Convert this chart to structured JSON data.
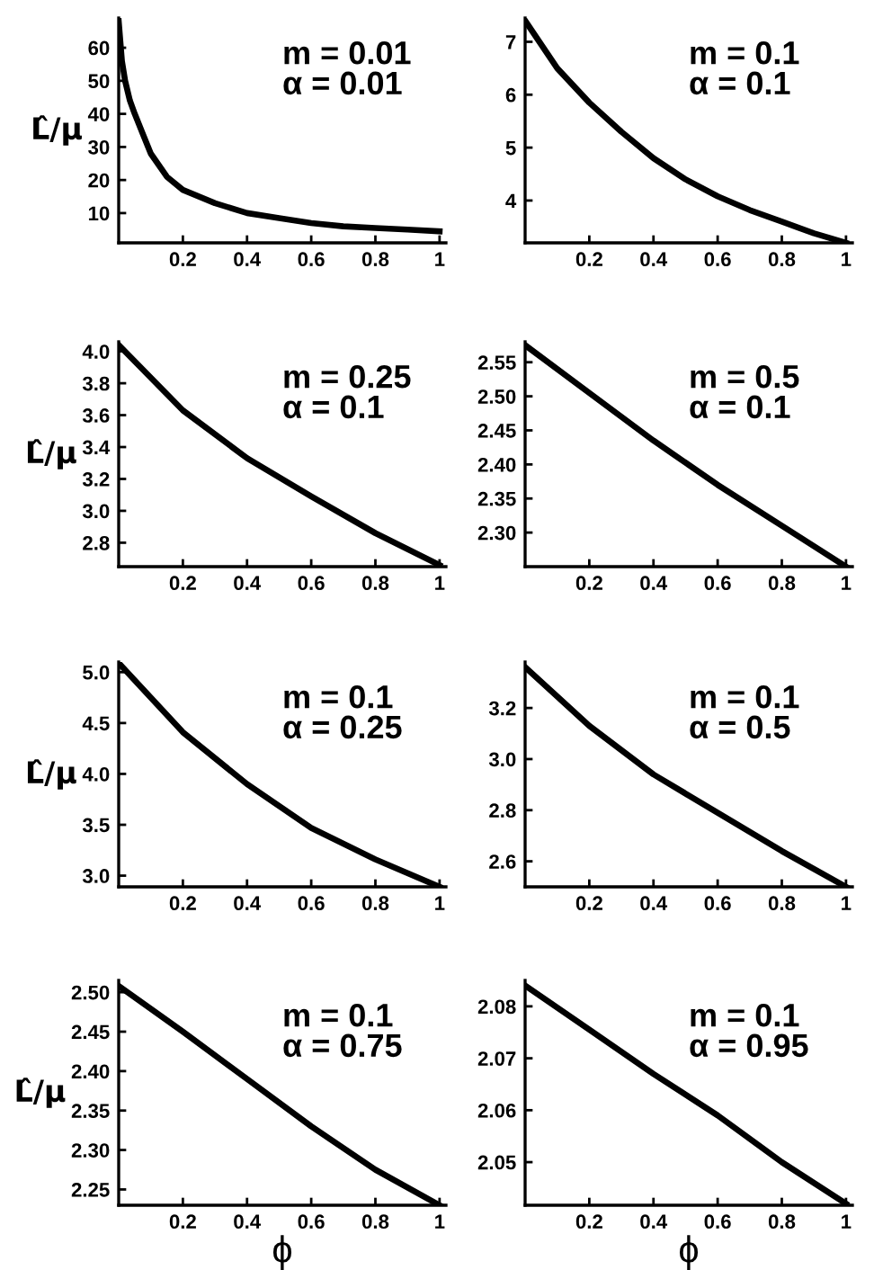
{
  "chart_data": [
    {
      "type": "line",
      "ylabel": "L̂/μ",
      "annotations": [
        "m = 0.01\nα = 0.01"
      ],
      "x": [
        0,
        0.01,
        0.02,
        0.035,
        0.05,
        0.075,
        0.1,
        0.15,
        0.2,
        0.3,
        0.4,
        0.5,
        0.6,
        0.7,
        0.8,
        0.9,
        1
      ],
      "series": [
        {
          "color": "#000000",
          "values": [
            68,
            56,
            50,
            44,
            40,
            34,
            28,
            21,
            17,
            13,
            10,
            8.5,
            7,
            6,
            5.5,
            5,
            4.5
          ]
        }
      ],
      "xlim": [
        0,
        1.02
      ],
      "ylim": [
        1,
        69
      ],
      "xticks": [
        0.2,
        0.4,
        0.6,
        0.8,
        1
      ],
      "yticks": [
        10,
        20,
        30,
        40,
        50,
        60
      ]
    },
    {
      "type": "line",
      "annotations": [
        "m = 0.1\nα = 0.1"
      ],
      "x": [
        0,
        0.1,
        0.2,
        0.3,
        0.4,
        0.5,
        0.6,
        0.7,
        0.8,
        0.9,
        1
      ],
      "series": [
        {
          "color": "#000000",
          "values": [
            7.4,
            6.5,
            5.85,
            5.3,
            4.8,
            4.4,
            4.08,
            3.82,
            3.6,
            3.38,
            3.2
          ]
        }
      ],
      "xlim": [
        0,
        1.02
      ],
      "ylim": [
        3.2,
        7.45
      ],
      "xticks": [
        0.2,
        0.4,
        0.6,
        0.8,
        1
      ],
      "yticks": [
        4,
        5,
        6,
        7
      ]
    },
    {
      "type": "line",
      "ylabel": "L̂/μ",
      "annotations": [
        "m = 0.25\nα = 0.1"
      ],
      "x": [
        0,
        0.2,
        0.4,
        0.6,
        0.8,
        1
      ],
      "series": [
        {
          "color": "#000000",
          "values": [
            4.04,
            3.63,
            3.33,
            3.09,
            2.86,
            2.66
          ]
        }
      ],
      "xlim": [
        0,
        1.02
      ],
      "ylim": [
        2.65,
        4.06
      ],
      "xticks": [
        0.2,
        0.4,
        0.6,
        0.8,
        1
      ],
      "yticks": [
        {
          "value": 2.8,
          "label": "2.8"
        },
        {
          "value": 3.0,
          "label": "3.0"
        },
        {
          "value": 3.2,
          "label": "3.2"
        },
        {
          "value": 3.4,
          "label": "3.4"
        },
        {
          "value": 3.6,
          "label": "3.6"
        },
        {
          "value": 3.8,
          "label": "3.8"
        },
        {
          "value": 4.0,
          "label": "4.0"
        }
      ]
    },
    {
      "type": "line",
      "annotations": [
        "m = 0.5\nα = 0.1"
      ],
      "x": [
        0,
        0.2,
        0.4,
        0.6,
        0.8,
        1
      ],
      "series": [
        {
          "color": "#000000",
          "values": [
            2.575,
            2.505,
            2.435,
            2.37,
            2.31,
            2.25
          ]
        }
      ],
      "xlim": [
        0,
        1.02
      ],
      "ylim": [
        2.25,
        2.58
      ],
      "xticks": [
        0.2,
        0.4,
        0.6,
        0.8,
        1
      ],
      "yticks": [
        {
          "value": 2.3,
          "label": "2.30"
        },
        {
          "value": 2.35,
          "label": "2.35"
        },
        {
          "value": 2.4,
          "label": "2.40"
        },
        {
          "value": 2.45,
          "label": "2.45"
        },
        {
          "value": 2.5,
          "label": "2.50"
        },
        {
          "value": 2.55,
          "label": "2.55"
        }
      ]
    },
    {
      "type": "line",
      "ylabel": "L̂/μ",
      "annotations": [
        "m = 0.1\nα = 0.25"
      ],
      "x": [
        0,
        0.2,
        0.4,
        0.6,
        0.8,
        1
      ],
      "series": [
        {
          "color": "#000000",
          "values": [
            5.09,
            4.41,
            3.9,
            3.47,
            3.16,
            2.89
          ]
        }
      ],
      "xlim": [
        0,
        1.02
      ],
      "ylim": [
        2.89,
        5.1
      ],
      "xticks": [
        0.2,
        0.4,
        0.6,
        0.8,
        1
      ],
      "yticks": [
        {
          "value": 3.0,
          "label": "3.0"
        },
        {
          "value": 3.5,
          "label": "3.5"
        },
        {
          "value": 4.0,
          "label": "4.0"
        },
        {
          "value": 4.5,
          "label": "4.5"
        },
        {
          "value": 5.0,
          "label": "5.0"
        }
      ]
    },
    {
      "type": "line",
      "annotations": [
        "m = 0.1\nα = 0.5"
      ],
      "x": [
        0,
        0.2,
        0.4,
        0.6,
        0.8,
        1
      ],
      "series": [
        {
          "color": "#000000",
          "values": [
            3.36,
            3.13,
            2.94,
            2.79,
            2.64,
            2.5
          ]
        }
      ],
      "xlim": [
        0,
        1.02
      ],
      "ylim": [
        2.5,
        3.38
      ],
      "xticks": [
        0.2,
        0.4,
        0.6,
        0.8,
        1
      ],
      "yticks": [
        2.6,
        2.8,
        {
          "value": 3.0,
          "label": "3.0"
        },
        3.2
      ]
    },
    {
      "type": "line",
      "ylabel": "L̂/μ",
      "xlabel": "ϕ",
      "annotations": [
        "m = 0.1\nα = 0.75"
      ],
      "x": [
        0,
        0.2,
        0.4,
        0.6,
        0.8,
        1
      ],
      "series": [
        {
          "color": "#000000",
          "values": [
            2.508,
            2.45,
            2.39,
            2.33,
            2.275,
            2.23
          ]
        }
      ],
      "xlim": [
        0,
        1.02
      ],
      "ylim": [
        2.23,
        2.515
      ],
      "xticks": [
        0.2,
        0.4,
        0.6,
        0.8,
        1
      ],
      "yticks": [
        2.25,
        {
          "value": 2.3,
          "label": "2.30"
        },
        2.35,
        {
          "value": 2.4,
          "label": "2.40"
        },
        2.45,
        {
          "value": 2.5,
          "label": "2.50"
        }
      ]
    },
    {
      "type": "line",
      "xlabel": "ϕ",
      "annotations": [
        "m = 0.1\nα = 0.95"
      ],
      "x": [
        0,
        0.2,
        0.4,
        0.6,
        0.8,
        1
      ],
      "series": [
        {
          "color": "#000000",
          "values": [
            2.084,
            2.0755,
            2.067,
            2.059,
            2.05,
            2.042
          ]
        }
      ],
      "xlim": [
        0,
        1.02
      ],
      "ylim": [
        2.0417,
        2.085
      ],
      "xticks": [
        0.2,
        0.4,
        0.6,
        0.8,
        1
      ],
      "yticks": [
        2.05,
        2.06,
        2.07,
        2.08
      ]
    }
  ]
}
